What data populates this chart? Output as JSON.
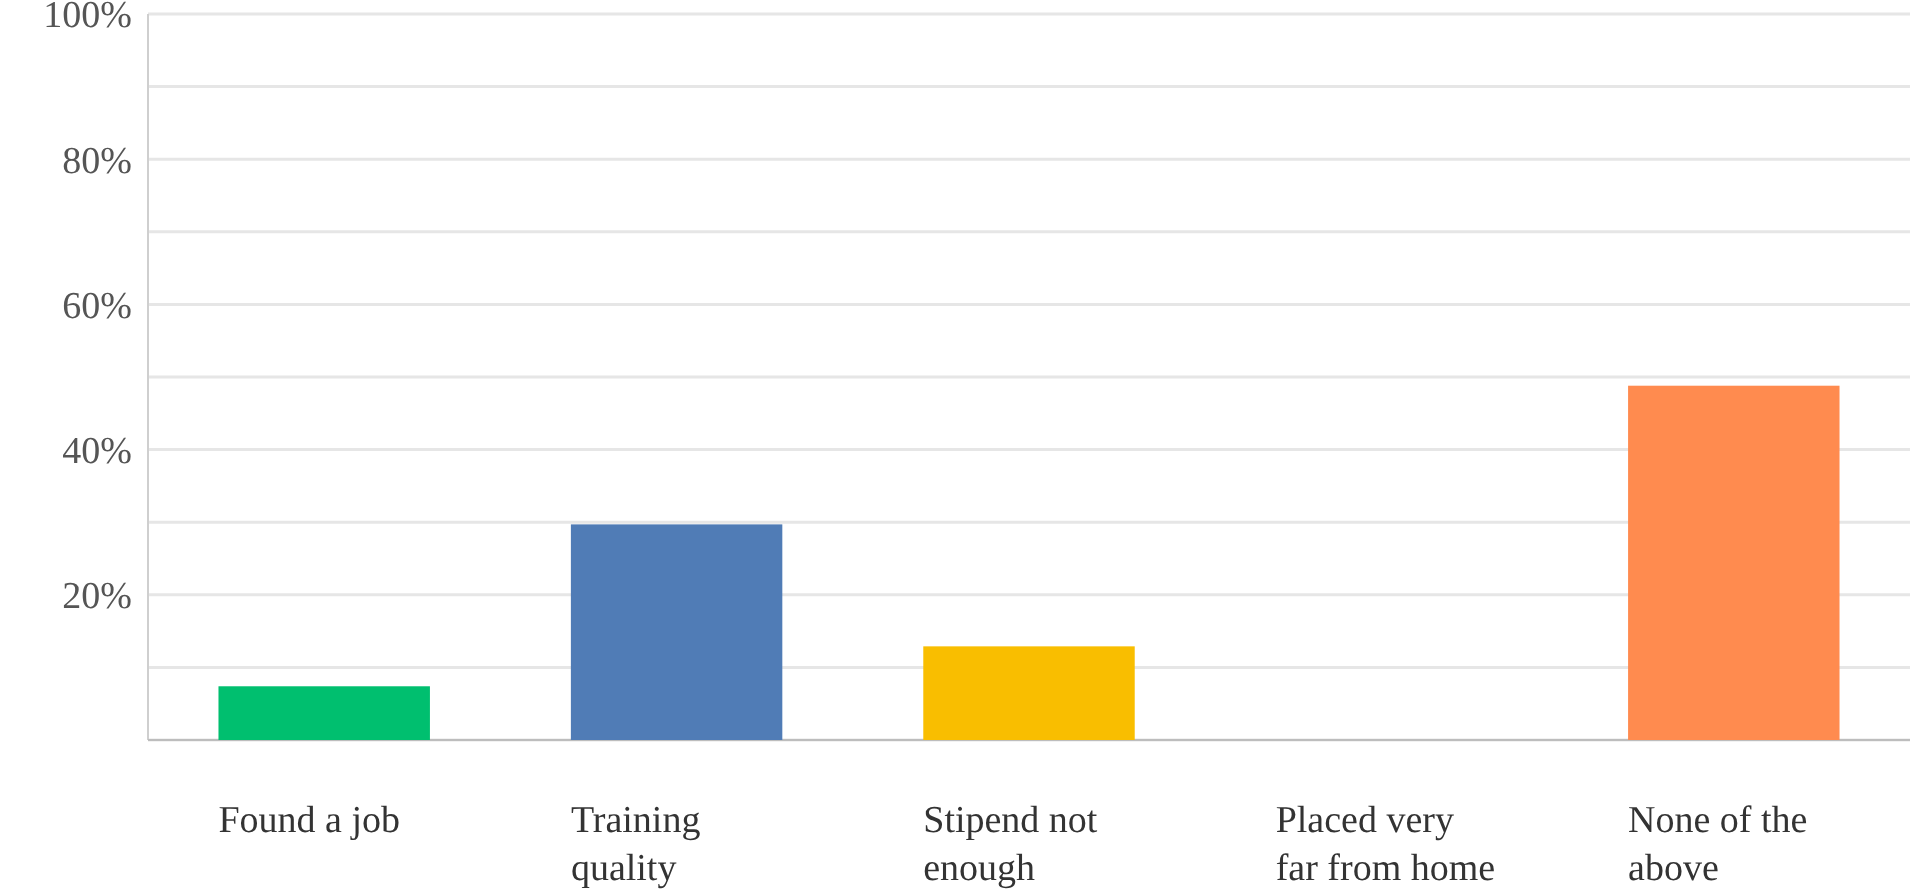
{
  "chart_data": {
    "type": "bar",
    "categories": [
      "Found a job",
      "Training quality",
      "Stipend not enough",
      "Placed very far from home",
      "None of the above"
    ],
    "values": [
      7.4,
      29.7,
      12.9,
      0,
      48.8
    ],
    "colors": [
      "#00bf6f",
      "#507cb6",
      "#f9be00",
      "#ff8b4f",
      "#ff8b4f"
    ],
    "ylim": [
      0,
      100
    ],
    "yticks": [
      {
        "value": 0,
        "label": null
      },
      {
        "value": 10,
        "label": null
      },
      {
        "value": 20,
        "label": "20%"
      },
      {
        "value": 30,
        "label": null
      },
      {
        "value": 40,
        "label": "40%"
      },
      {
        "value": 50,
        "label": null
      },
      {
        "value": 60,
        "label": "60%"
      },
      {
        "value": 70,
        "label": null
      },
      {
        "value": 80,
        "label": "80%"
      },
      {
        "value": 90,
        "label": null
      },
      {
        "value": 100,
        "label": "100%"
      }
    ],
    "grid": "y"
  }
}
